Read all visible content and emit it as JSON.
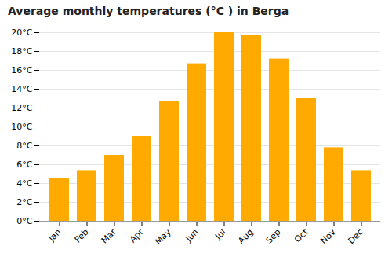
{
  "chart_data": {
    "type": "bar",
    "title": "Average monthly temperatures (°C ) in Berga",
    "categories": [
      "Jan",
      "Feb",
      "Mar",
      "Apr",
      "May",
      "Jun",
      "Jul",
      "Aug",
      "Sep",
      "Oct",
      "Nov",
      "Dec"
    ],
    "values": [
      4.5,
      5.3,
      7.0,
      9.0,
      12.7,
      16.7,
      20.0,
      19.7,
      17.2,
      13.0,
      7.8,
      5.3
    ],
    "color": "#FFAA00",
    "ylim": [
      0,
      20
    ],
    "yticks": [
      {
        "value": 0,
        "label": "0°C"
      },
      {
        "value": 2,
        "label": "2°C"
      },
      {
        "value": 4,
        "label": "4°C"
      },
      {
        "value": 6,
        "label": "6°C"
      },
      {
        "value": 8,
        "label": "8°C"
      },
      {
        "value": 10,
        "label": "10°C"
      },
      {
        "value": 12,
        "label": "12°C"
      },
      {
        "value": 14,
        "label": "14°C"
      },
      {
        "value": 16,
        "label": "16°C"
      },
      {
        "value": 18,
        "label": "18°C"
      },
      {
        "value": 20,
        "label": "20°C"
      }
    ],
    "grid": true
  }
}
